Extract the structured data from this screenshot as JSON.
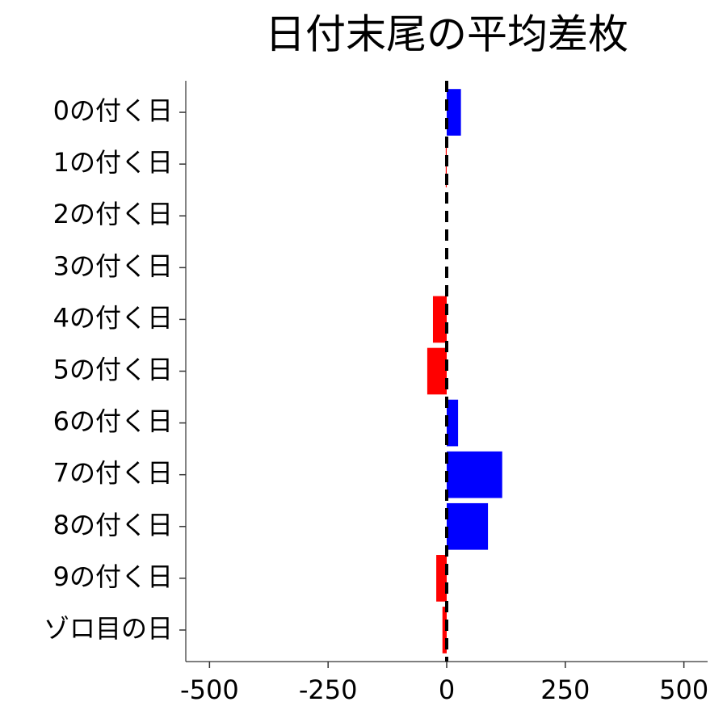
{
  "chart_data": {
    "type": "barh",
    "title": "日付末尾の平均差枚",
    "categories": [
      "0の付く日",
      "1の付く日",
      "2の付く日",
      "3の付く日",
      "4の付く日",
      "5の付く日",
      "6の付く日",
      "7の付く日",
      "8の付く日",
      "9の付く日",
      "ゾロ目の日"
    ],
    "values": [
      30,
      -2,
      0,
      0,
      -29,
      -41,
      24,
      117,
      87,
      -22,
      -9
    ],
    "colors": [
      "#0000ff",
      "#ff0000",
      "#ff0000",
      "#ff0000",
      "#ff0000",
      "#ff0000",
      "#0000ff",
      "#0000ff",
      "#0000ff",
      "#ff0000",
      "#ff0000"
    ],
    "xlim": [
      -550,
      550
    ],
    "xticks": [
      -500,
      -250,
      0,
      250,
      500
    ],
    "reference_line": 0,
    "grid": false
  }
}
